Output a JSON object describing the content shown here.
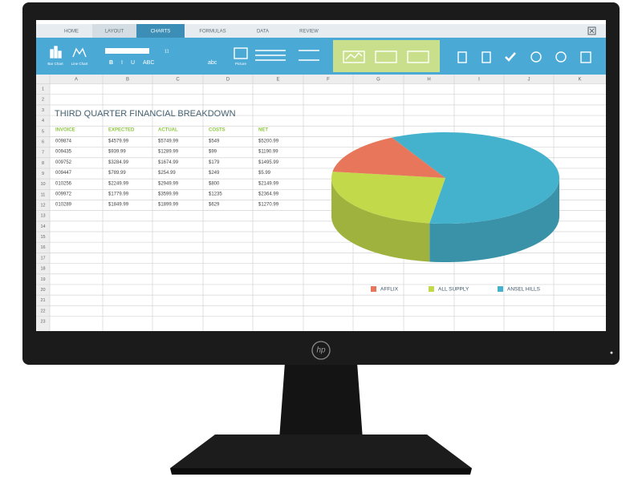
{
  "tabs": [
    "HOME",
    "LAYOUT",
    "CHARTS",
    "FORMULAS",
    "DATA",
    "REVIEW"
  ],
  "active_tab": 2,
  "ribbon": {
    "buttons": [
      "Bar Chart",
      "Line Chart",
      "Picture"
    ],
    "font_size": "11",
    "format": [
      "B",
      "I",
      "U",
      "ABC",
      "abc"
    ]
  },
  "columns": [
    "A",
    "B",
    "C",
    "D",
    "E",
    "F",
    "G",
    "H",
    "I",
    "J",
    "K"
  ],
  "row_numbers": [
    1,
    2,
    3,
    4,
    5,
    6,
    7,
    8,
    9,
    10,
    11,
    12,
    13,
    14,
    15,
    16,
    17,
    18,
    19,
    20,
    21,
    22,
    23
  ],
  "sheet": {
    "title": "THIRD QUARTER FINANCIAL BREAKDOWN",
    "header": [
      "INVOICE",
      "EXPECTED",
      "ACTUAL",
      "COSTS",
      "NET"
    ],
    "rows": [
      [
        "009874",
        "$4579.99",
        "$5749.99",
        "$549",
        "$5200.99"
      ],
      [
        "009435",
        "$939.99",
        "$1289.99",
        "$99",
        "$1190.99"
      ],
      [
        "009752",
        "$3284.99",
        "$1674.99",
        "$179",
        "$1495.99"
      ],
      [
        "009447",
        "$789.99",
        "$254.99",
        "$249",
        "$5.99"
      ],
      [
        "010256",
        "$2249.99",
        "$2949.99",
        "$800",
        "$2149.99"
      ],
      [
        "009972",
        "$1779.99",
        "$3599.99",
        "$1235",
        "$2364.99"
      ],
      [
        "010289",
        "$1849.99",
        "$1899.99",
        "$629",
        "$1270.99"
      ]
    ]
  },
  "pie": {
    "slices": [
      {
        "name": "ANSEL HILLS",
        "color": "#45b2cd",
        "value": 60
      },
      {
        "name": "ALL SUPPLY",
        "color": "#c2d94a",
        "value": 25
      },
      {
        "name": "AFFLIX",
        "color": "#e8765a",
        "value": 15
      }
    ]
  },
  "logo": "hp"
}
